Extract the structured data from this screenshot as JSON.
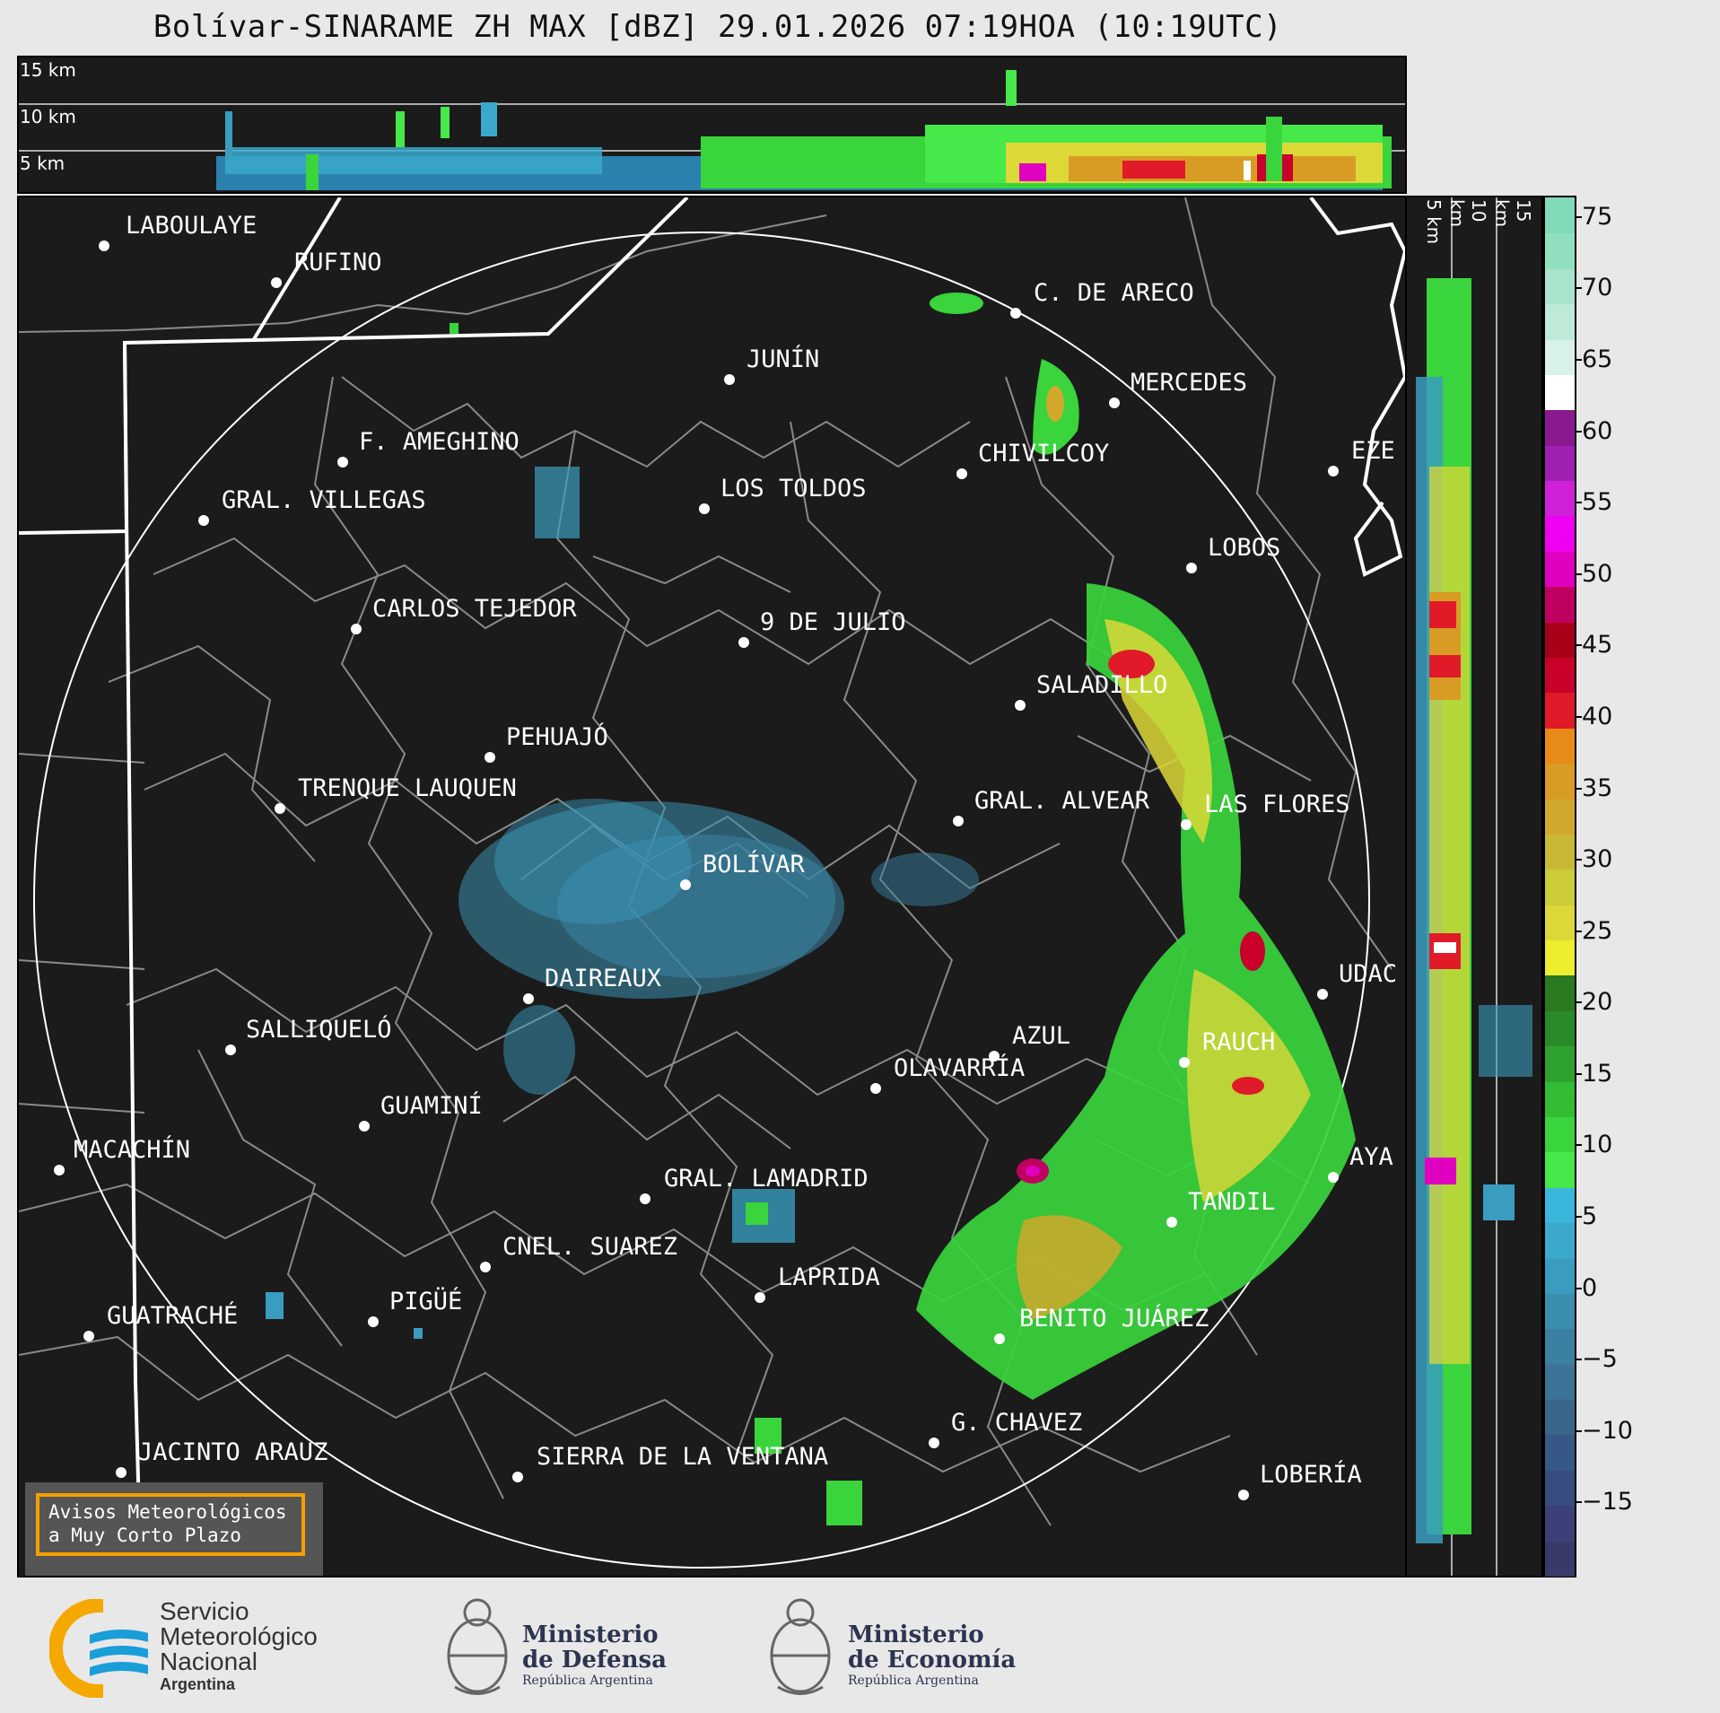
{
  "title": "Bolívar-SINARAME ZH MAX [dBZ] 29.01.2026 07:19HOA (10:19UTC)",
  "top_strip": {
    "alt_labels": [
      "15 km",
      "10 km",
      "5 km"
    ]
  },
  "side_strip": {
    "alt_labels": [
      "5 km",
      "10 km",
      "15 km"
    ]
  },
  "colorbar": {
    "ticks": [
      "75",
      "70",
      "65",
      "60",
      "55",
      "50",
      "45",
      "40",
      "35",
      "30",
      "25",
      "20",
      "15",
      "10",
      "5",
      "0",
      "−5",
      "−10",
      "−15"
    ],
    "min_dbz": -20,
    "max_dbz": 76.5,
    "colors": [
      "#3a3a6a",
      "#3d3f78",
      "#394c80",
      "#375886",
      "#3a668c",
      "#3c7396",
      "#3a80a0",
      "#3a8fae",
      "#3a9cbe",
      "#3aa9cc",
      "#3ab6dc",
      "#46e84a",
      "#3ad43c",
      "#32bc34",
      "#2ea22e",
      "#2a8a2a",
      "#2a7a22",
      "#eeee30",
      "#dcd838",
      "#cbcc36",
      "#c8b836",
      "#d0a82c",
      "#d89c24",
      "#e88a18",
      "#e01a28",
      "#c8002a",
      "#a80018",
      "#c00060",
      "#e000c0",
      "#f000f0",
      "#d020d8",
      "#a020b0",
      "#8a1890",
      "#ffffff",
      "#d8f2e8",
      "#c0ead8",
      "#a8e4cc",
      "#90e0c0",
      "#80dcb8"
    ]
  },
  "cities": [
    {
      "name": "LABOULAYE"
    },
    {
      "name": "RUFINO"
    },
    {
      "name": "C. DE ARECO"
    },
    {
      "name": "JUNÍN"
    },
    {
      "name": "MERCEDES"
    },
    {
      "name": "F. AMEGHINO"
    },
    {
      "name": "CHIVILCOY"
    },
    {
      "name": "EZE"
    },
    {
      "name": "GRAL. VILLEGAS"
    },
    {
      "name": "LOS TOLDOS"
    },
    {
      "name": "LOBOS"
    },
    {
      "name": "CARLOS TEJEDOR"
    },
    {
      "name": "9 DE JULIO"
    },
    {
      "name": "SALADILLO"
    },
    {
      "name": "PEHUAJÓ"
    },
    {
      "name": "TRENQUE LAUQUEN"
    },
    {
      "name": "GRAL. ALVEAR"
    },
    {
      "name": "LAS FLORES"
    },
    {
      "name": "BOLÍVAR"
    },
    {
      "name": "DAIREAUX"
    },
    {
      "name": "UDAC"
    },
    {
      "name": "SALLIQUELÓ"
    },
    {
      "name": "AZUL"
    },
    {
      "name": "RAUCH"
    },
    {
      "name": "OLAVARRÍA"
    },
    {
      "name": "GUAMINÍ"
    },
    {
      "name": "MACACHÍN"
    },
    {
      "name": "AYA"
    },
    {
      "name": "GRAL. LAMADRID"
    },
    {
      "name": "TANDIL"
    },
    {
      "name": "CNEL. SUAREZ"
    },
    {
      "name": "LAPRIDA"
    },
    {
      "name": "PIGÜÉ"
    },
    {
      "name": "GUATRACHÉ"
    },
    {
      "name": "BENITO JUÁREZ"
    },
    {
      "name": "G. CHAVEZ"
    },
    {
      "name": "JACINTO ARAUZ"
    },
    {
      "name": "SIERRA DE LA VENTANA"
    },
    {
      "name": "LOBERÍA"
    }
  ],
  "warning": {
    "line1": "Avisos Meteorológicos",
    "line2": "a Muy Corto Plazo"
  },
  "logos": {
    "smn": {
      "line1": "Servicio",
      "line2": "Meteorológico",
      "line3": "Nacional",
      "line4": "Argentina"
    },
    "defensa": {
      "line1": "Ministerio",
      "line2": "de Defensa",
      "line3": "República Argentina"
    },
    "economia": {
      "line1": "Ministerio",
      "line2": "de Economía",
      "line3": "República Argentina"
    }
  }
}
